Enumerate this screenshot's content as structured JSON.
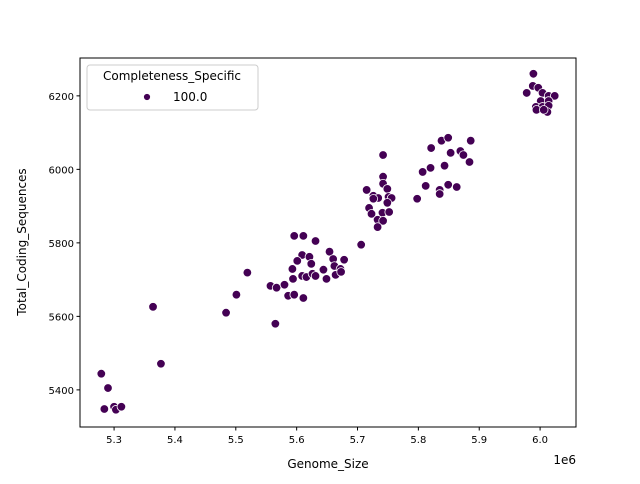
{
  "chart_data": {
    "type": "scatter",
    "title": "",
    "xlabel": "Genome_Size",
    "ylabel": "Total_Coding_Sequences",
    "x_offset_label": "1e6",
    "xlim": [
      5.244,
      6.059
    ],
    "ylim": [
      5299,
      6303
    ],
    "x_ticks": [
      5.3,
      5.4,
      5.5,
      5.6,
      5.7,
      5.8,
      5.9,
      6.0
    ],
    "x_tick_labels": [
      "5.3",
      "5.4",
      "5.5",
      "5.6",
      "5.7",
      "5.8",
      "5.9",
      "6.0"
    ],
    "y_ticks": [
      5400,
      5600,
      5800,
      6000,
      6200
    ],
    "y_tick_labels": [
      "5400",
      "5600",
      "5800",
      "6000",
      "6200"
    ],
    "grid": false,
    "legend": {
      "title": "Completeness_Specific",
      "placement": "top-left",
      "entries": [
        {
          "label": "100.0",
          "color": "#440154"
        }
      ]
    },
    "series": [
      {
        "name": "100.0",
        "color": "#440154",
        "points": [
          [
            5.279,
            5444
          ],
          [
            5.29,
            5405
          ],
          [
            5.284,
            5348
          ],
          [
            5.3,
            5354
          ],
          [
            5.303,
            5346
          ],
          [
            5.312,
            5354
          ],
          [
            5.364,
            5626
          ],
          [
            5.377,
            5471
          ],
          [
            5.484,
            5610
          ],
          [
            5.501,
            5659
          ],
          [
            5.519,
            5719
          ],
          [
            5.565,
            5580
          ],
          [
            5.596,
            5819
          ],
          [
            5.611,
            5819
          ],
          [
            5.631,
            5805
          ],
          [
            5.706,
            5795
          ],
          [
            5.654,
            5776
          ],
          [
            5.609,
            5767
          ],
          [
            5.621,
            5762
          ],
          [
            5.601,
            5751
          ],
          [
            5.66,
            5756
          ],
          [
            5.678,
            5754
          ],
          [
            5.624,
            5743
          ],
          [
            5.593,
            5729
          ],
          [
            5.644,
            5727
          ],
          [
            5.662,
            5737
          ],
          [
            5.672,
            5729
          ],
          [
            5.609,
            5710
          ],
          [
            5.616,
            5707
          ],
          [
            5.626,
            5716
          ],
          [
            5.631,
            5710
          ],
          [
            5.649,
            5702
          ],
          [
            5.664,
            5713
          ],
          [
            5.673,
            5721
          ],
          [
            5.594,
            5702
          ],
          [
            5.557,
            5683
          ],
          [
            5.567,
            5678
          ],
          [
            5.58,
            5686
          ],
          [
            5.586,
            5656
          ],
          [
            5.596,
            5659
          ],
          [
            5.611,
            5650
          ],
          [
            5.742,
            6039
          ],
          [
            5.821,
            6058
          ],
          [
            5.838,
            6078
          ],
          [
            5.849,
            6086
          ],
          [
            5.886,
            6078
          ],
          [
            5.853,
            6045
          ],
          [
            5.869,
            6050
          ],
          [
            5.874,
            6039
          ],
          [
            5.884,
            6020
          ],
          [
            5.82,
            6004
          ],
          [
            5.843,
            6010
          ],
          [
            5.807,
            5993
          ],
          [
            5.812,
            5955
          ],
          [
            5.849,
            5958
          ],
          [
            5.835,
            5944
          ],
          [
            5.835,
            5933
          ],
          [
            5.863,
            5952
          ],
          [
            5.798,
            5920
          ],
          [
            5.742,
            5980
          ],
          [
            5.742,
            5961
          ],
          [
            5.749,
            5947
          ],
          [
            5.715,
            5944
          ],
          [
            5.726,
            5928
          ],
          [
            5.734,
            5922
          ],
          [
            5.751,
            5925
          ],
          [
            5.756,
            5922
          ],
          [
            5.726,
            5920
          ],
          [
            5.749,
            5909
          ],
          [
            5.719,
            5895
          ],
          [
            5.723,
            5879
          ],
          [
            5.741,
            5882
          ],
          [
            5.752,
            5884
          ],
          [
            5.733,
            5863
          ],
          [
            5.742,
            5860
          ],
          [
            5.733,
            5843
          ],
          [
            5.989,
            6260
          ],
          [
            5.988,
            6227
          ],
          [
            5.978,
            6208
          ],
          [
            5.997,
            6222
          ],
          [
            6.004,
            6208
          ],
          [
            6.014,
            6200
          ],
          [
            6.024,
            6200
          ],
          [
            6.001,
            6186
          ],
          [
            6.014,
            6186
          ],
          [
            5.993,
            6170
          ],
          [
            6.004,
            6170
          ],
          [
            6.014,
            6173
          ],
          [
            5.994,
            6162
          ],
          [
            6.012,
            6156
          ],
          [
            6.006,
            6162
          ]
        ]
      }
    ]
  }
}
